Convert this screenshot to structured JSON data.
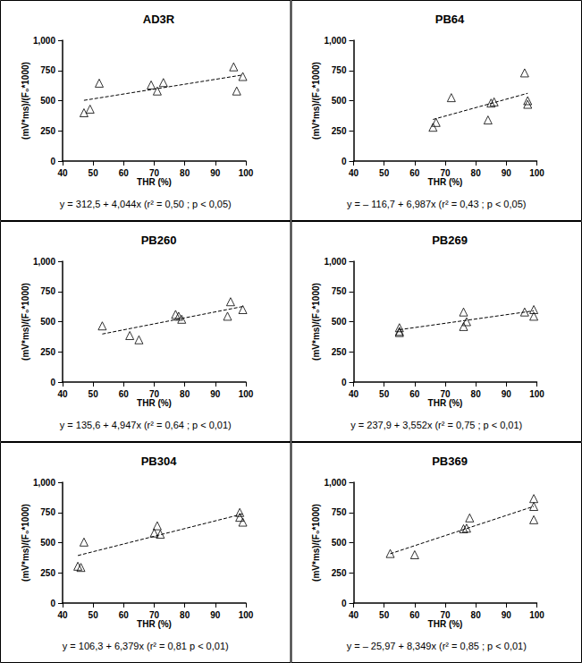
{
  "chart_data": [
    {
      "type": "scatter",
      "title": "AD3R",
      "x_label": "THR (%)",
      "y_label": "(mV*ms)/(F₀*1000)",
      "x": [
        47,
        49,
        52,
        69,
        71,
        73,
        96,
        97,
        99
      ],
      "y": [
        400,
        430,
        645,
        630,
        580,
        650,
        780,
        580,
        700
      ],
      "xlim": [
        40,
        100
      ],
      "xticks": [
        40,
        50,
        60,
        70,
        80,
        90,
        100
      ],
      "ylim": [
        0,
        1000
      ],
      "yticks": [
        0,
        250,
        500,
        750,
        1000
      ],
      "grid": false,
      "marker": "triangle-open",
      "color": "#000000",
      "fit": {
        "intercept": 312.5,
        "slope": 4.044,
        "line_style": "dashed"
      },
      "annotation": "y = 312,5 + 4,044x (r² = 0,50 ; p < 0,05)"
    },
    {
      "type": "scatter",
      "title": "PB64",
      "x_label": "THR (%)",
      "y_label": "(mV*ms)/(F₀*1000)",
      "x": [
        66,
        67,
        72,
        84,
        85,
        86,
        96,
        97,
        97
      ],
      "y": [
        280,
        320,
        525,
        340,
        480,
        490,
        730,
        500,
        470
      ],
      "xlim": [
        40,
        100
      ],
      "xticks": [
        40,
        50,
        60,
        70,
        80,
        90,
        100
      ],
      "ylim": [
        0,
        1000
      ],
      "yticks": [
        0,
        250,
        500,
        750,
        1000
      ],
      "grid": false,
      "marker": "triangle-open",
      "color": "#000000",
      "fit": {
        "intercept": -116.7,
        "slope": 6.987,
        "line_style": "dashed"
      },
      "annotation": "y = – 116,7 + 6,987x (r² = 0,43 ; p < 0,05)"
    },
    {
      "type": "scatter",
      "title": "PB260",
      "x_label": "THR (%)",
      "y_label": "(mV*ms)/(F₀*1000)",
      "x": [
        53,
        62,
        65,
        77,
        78,
        79,
        94,
        95,
        99
      ],
      "y": [
        465,
        385,
        350,
        560,
        545,
        520,
        545,
        665,
        600
      ],
      "xlim": [
        40,
        100
      ],
      "xticks": [
        40,
        50,
        60,
        70,
        80,
        90,
        100
      ],
      "ylim": [
        0,
        1000
      ],
      "yticks": [
        0,
        250,
        500,
        750,
        1000
      ],
      "grid": false,
      "marker": "triangle-open",
      "color": "#000000",
      "fit": {
        "intercept": 135.6,
        "slope": 4.947,
        "line_style": "dashed"
      },
      "annotation": "y = 135,6 + 4,947x (r² = 0,64 ; p < 0,01)"
    },
    {
      "type": "scatter",
      "title": "PB269",
      "x_label": "THR (%)",
      "y_label": "(mV*ms)/(F₀*1000)",
      "x": [
        55,
        55,
        55,
        76,
        76,
        77,
        96,
        99,
        99
      ],
      "y": [
        450,
        420,
        410,
        580,
        460,
        500,
        580,
        600,
        545
      ],
      "xlim": [
        40,
        100
      ],
      "xticks": [
        40,
        50,
        60,
        70,
        80,
        90,
        100
      ],
      "ylim": [
        0,
        1000
      ],
      "yticks": [
        0,
        250,
        500,
        750,
        1000
      ],
      "grid": false,
      "marker": "triangle-open",
      "color": "#000000",
      "fit": {
        "intercept": 237.9,
        "slope": 3.552,
        "line_style": "dashed"
      },
      "annotation": "y = 237,9 + 3,552x (r² = 0,75 ; p < 0,01)"
    },
    {
      "type": "scatter",
      "title": "PB304",
      "x_label": "THR (%)",
      "y_label": "(mV*ms)/(F₀*1000)",
      "x": [
        45,
        46,
        47,
        70,
        71,
        72,
        98,
        98,
        99
      ],
      "y": [
        305,
        295,
        505,
        580,
        640,
        570,
        750,
        710,
        670
      ],
      "xlim": [
        40,
        100
      ],
      "xticks": [
        40,
        50,
        60,
        70,
        80,
        90,
        100
      ],
      "ylim": [
        0,
        1000
      ],
      "yticks": [
        0,
        250,
        500,
        750,
        1000
      ],
      "grid": false,
      "marker": "triangle-open",
      "color": "#000000",
      "fit": {
        "intercept": 106.3,
        "slope": 6.379,
        "line_style": "dashed"
      },
      "annotation": "y = 106,3 + 6,379x (r² = 0,81 p < 0,01)"
    },
    {
      "type": "scatter",
      "title": "PB369",
      "x_label": "THR (%)",
      "y_label": "(mV*ms)/(F₀*1000)",
      "x": [
        52,
        60,
        76,
        77,
        78,
        99,
        99,
        99
      ],
      "y": [
        410,
        400,
        615,
        620,
        705,
        865,
        800,
        690
      ],
      "xlim": [
        40,
        100
      ],
      "xticks": [
        40,
        50,
        60,
        70,
        80,
        90,
        100
      ],
      "ylim": [
        0,
        1000
      ],
      "yticks": [
        0,
        250,
        500,
        750,
        1000
      ],
      "grid": false,
      "marker": "triangle-open",
      "color": "#000000",
      "fit": {
        "intercept": -25.97,
        "slope": 8.349,
        "line_style": "dashed"
      },
      "annotation": "y = – 25,97 + 8,349x (r² = 0,85 ; p < 0,01)"
    }
  ]
}
